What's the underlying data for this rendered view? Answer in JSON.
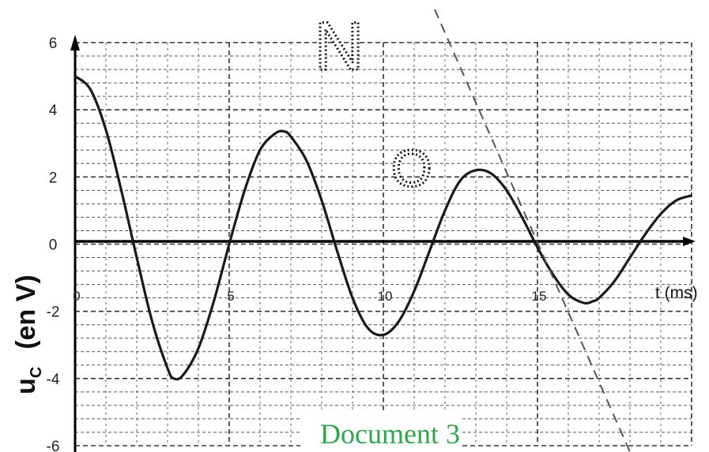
{
  "chart_data": {
    "type": "line",
    "ylabel": "u",
    "ylabel_sub": "C",
    "ylabel_unit": "(en V)",
    "xlabel": "t (ms)",
    "xlim": [
      0,
      20
    ],
    "ylim": [
      -6,
      6
    ],
    "x_ticks": [
      0,
      5,
      10,
      15
    ],
    "y_ticks": [
      6,
      4,
      2,
      0,
      -2,
      -4,
      -6
    ],
    "grid": true,
    "series": [
      {
        "x": [
          0,
          0.5,
          1,
          1.5,
          2,
          2.5,
          3,
          3.2,
          3.5,
          4,
          4.5,
          5,
          5.5,
          6,
          6.5,
          6.8,
          7,
          7.5,
          8,
          8.5,
          9,
          9.5,
          10,
          10.5,
          11,
          11.5,
          12,
          12.5,
          13,
          13.5,
          14,
          14.5,
          15,
          15.5,
          16,
          16.5,
          16.8,
          17,
          17.5,
          18,
          18.5,
          19,
          19.5,
          20
        ],
        "y": [
          5.0,
          4.6,
          3.4,
          1.6,
          -0.4,
          -2.3,
          -3.7,
          -4.0,
          -3.9,
          -3.1,
          -1.7,
          0.0,
          1.6,
          2.8,
          3.3,
          3.35,
          3.2,
          2.5,
          1.3,
          -0.2,
          -1.6,
          -2.5,
          -2.7,
          -2.3,
          -1.4,
          -0.2,
          1.0,
          1.9,
          2.2,
          2.1,
          1.6,
          0.8,
          -0.1,
          -0.9,
          -1.5,
          -1.75,
          -1.7,
          -1.6,
          -1.1,
          -0.4,
          0.3,
          0.9,
          1.3,
          1.45
        ]
      }
    ],
    "annotations": {
      "document": "Document 3",
      "point_n": "N",
      "point_o": "O"
    }
  }
}
